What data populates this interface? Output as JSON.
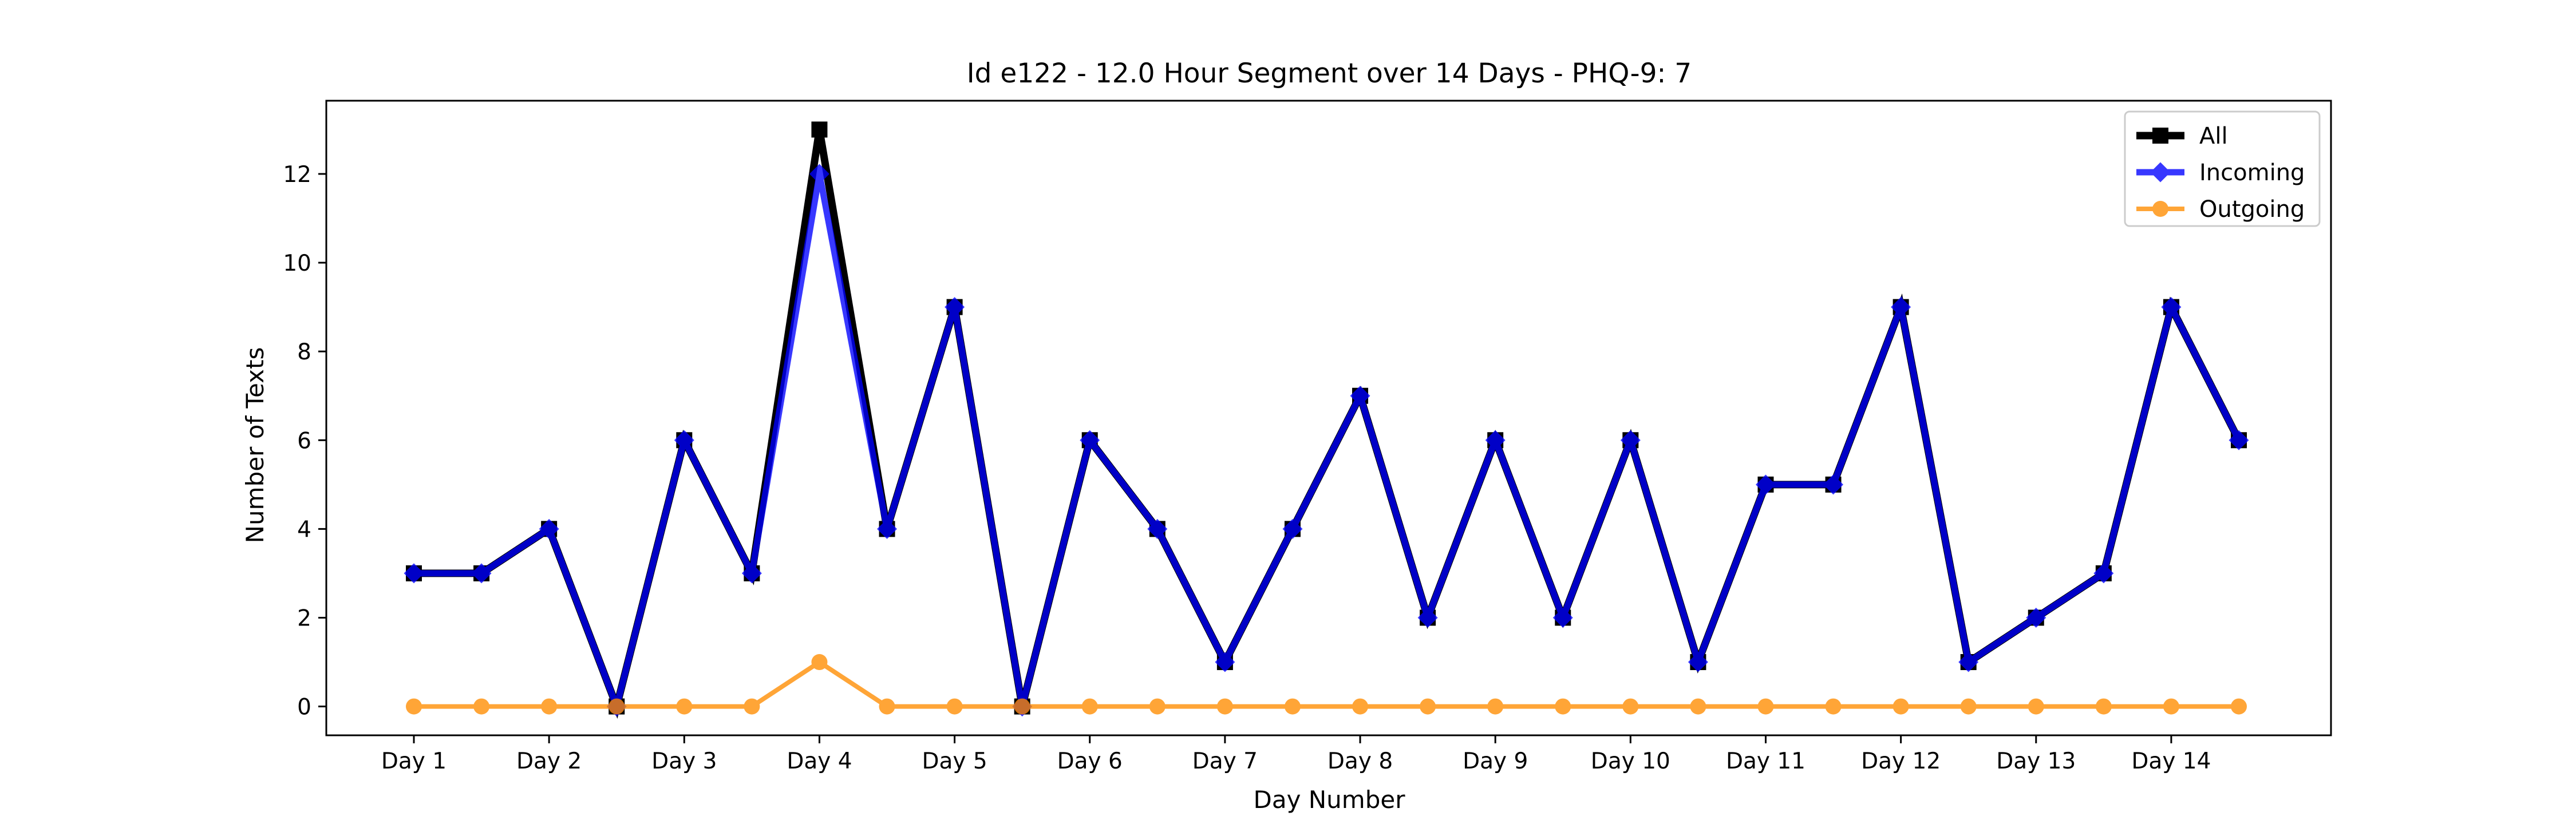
{
  "chart_data": {
    "type": "line",
    "title": "Id e122 - 12.0 Hour Segment over 14 Days - PHQ-9: 7",
    "xlabel": "Day Number",
    "ylabel": "Number of Texts",
    "x_tick_labels": [
      "Day 1",
      "Day 2",
      "Day 3",
      "Day 4",
      "Day 5",
      "Day 6",
      "Day 7",
      "Day 8",
      "Day 9",
      "Day 10",
      "Day 11",
      "Day 12",
      "Day 13",
      "Day 14"
    ],
    "y_ticks": [
      0,
      2,
      4,
      6,
      8,
      10,
      12
    ],
    "ylim": [
      -0.65,
      13.65
    ],
    "grid": false,
    "legend_position": "top-right",
    "series": [
      {
        "name": "All",
        "color": "#000000",
        "marker": "square",
        "values": [
          3,
          3,
          4,
          0,
          6,
          3,
          13,
          4,
          9,
          0,
          6,
          4,
          1,
          4,
          7,
          2,
          6,
          2,
          6,
          1,
          5,
          5,
          9,
          1,
          2,
          3,
          9,
          6
        ]
      },
      {
        "name": "Incoming",
        "color": "#0000ff",
        "marker": "diamond",
        "values": [
          3,
          3,
          4,
          0,
          6,
          3,
          12,
          4,
          9,
          0,
          6,
          4,
          1,
          4,
          7,
          2,
          6,
          2,
          6,
          1,
          5,
          5,
          9,
          1,
          2,
          3,
          9,
          6
        ]
      },
      {
        "name": "Outgoing",
        "color": "#ff8c00",
        "marker": "circle",
        "values": [
          0,
          0,
          0,
          0,
          0,
          0,
          1,
          0,
          0,
          0,
          0,
          0,
          0,
          0,
          0,
          0,
          0,
          0,
          0,
          0,
          0,
          0,
          0,
          0,
          0,
          0,
          0,
          0
        ]
      }
    ]
  }
}
